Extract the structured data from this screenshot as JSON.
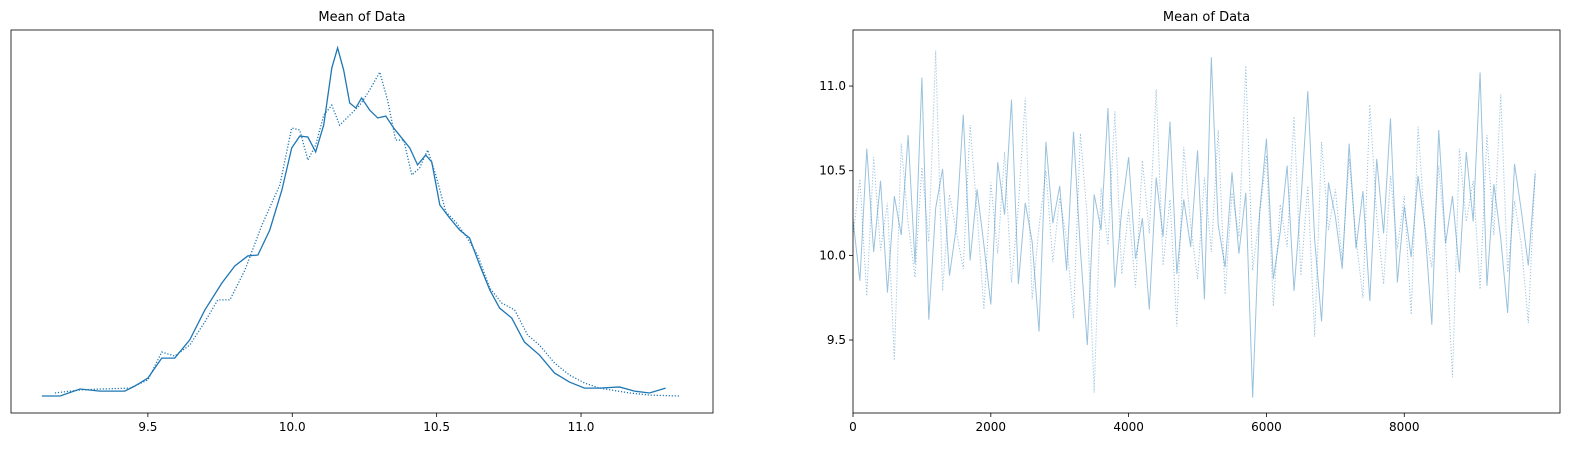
{
  "chart_data": [
    {
      "type": "line",
      "title": "Mean of Data",
      "xlim": [
        9.026,
        11.457
      ],
      "ylim": [
        -0.073,
        1.573
      ],
      "xticks": [
        9.5,
        {
          "value": 10,
          "label": "10.0"
        },
        10.5,
        {
          "value": 11,
          "label": "11.0"
        }
      ],
      "series": [
        {
          "color": "#1f77b4",
          "linestyle": "solid",
          "x": [
            9.133,
            9.196,
            9.265,
            9.334,
            9.42,
            9.455,
            9.5,
            9.548,
            9.593,
            9.645,
            9.697,
            9.756,
            9.801,
            9.846,
            9.881,
            9.922,
            9.964,
            9.998,
            10.026,
            10.054,
            10.081,
            10.109,
            10.137,
            10.157,
            10.178,
            10.199,
            10.22,
            10.24,
            10.268,
            10.296,
            10.324,
            10.351,
            10.379,
            10.407,
            10.434,
            10.462,
            10.483,
            10.511,
            10.545,
            10.58,
            10.614,
            10.649,
            10.684,
            10.718,
            10.76,
            10.804,
            10.856,
            10.908,
            10.96,
            11.012,
            11.064,
            11.133,
            11.185,
            11.237,
            11.293
          ],
          "values": [
            0,
            0,
            0.03,
            0.021,
            0.021,
            0.043,
            0.077,
            0.163,
            0.163,
            0.241,
            0.369,
            0.485,
            0.559,
            0.602,
            0.606,
            0.713,
            0.885,
            1.066,
            1.117,
            1.113,
            1.049,
            1.165,
            1.41,
            1.496,
            1.401,
            1.259,
            1.238,
            1.281,
            1.229,
            1.195,
            1.203,
            1.152,
            1.109,
            1.066,
            0.993,
            1.036,
            1.006,
            0.821,
            0.765,
            0.713,
            0.679,
            0.563,
            0.456,
            0.378,
            0.335,
            0.232,
            0.176,
            0.099,
            0.06,
            0.034,
            0.034,
            0.039,
            0.021,
            0.013,
            0.034
          ]
        },
        {
          "color": "#1f77b4",
          "linestyle": "dotted",
          "x": [
            9.178,
            9.265,
            9.334,
            9.438,
            9.5,
            9.548,
            9.593,
            9.645,
            9.697,
            9.742,
            9.784,
            9.836,
            9.895,
            9.957,
            9.998,
            10.026,
            10.054,
            10.081,
            10.109,
            10.137,
            10.164,
            10.199,
            10.234,
            10.268,
            10.303,
            10.33,
            10.358,
            10.386,
            10.414,
            10.441,
            10.469,
            10.497,
            10.532,
            10.566,
            10.601,
            10.642,
            10.684,
            10.725,
            10.77,
            10.815,
            10.856,
            10.908,
            10.96,
            11.012,
            11.064,
            11.168,
            11.237,
            11.341
          ],
          "values": [
            0.013,
            0.026,
            0.03,
            0.034,
            0.069,
            0.189,
            0.172,
            0.219,
            0.318,
            0.413,
            0.413,
            0.541,
            0.735,
            0.907,
            1.152,
            1.143,
            1.014,
            1.078,
            1.207,
            1.25,
            1.164,
            1.207,
            1.25,
            1.315,
            1.392,
            1.272,
            1.1,
            1.1,
            0.95,
            0.98,
            1.057,
            0.95,
            0.791,
            0.748,
            0.688,
            0.606,
            0.464,
            0.4,
            0.37,
            0.262,
            0.219,
            0.142,
            0.09,
            0.056,
            0.034,
            0.013,
            0.004,
            0
          ]
        }
      ]
    },
    {
      "type": "line",
      "title": "Mean of Data",
      "xlim": [
        0,
        10260
      ],
      "ylim": [
        9.069,
        11.331
      ],
      "xticks": [
        0,
        2000,
        4000,
        6000,
        8000
      ],
      "yticks": [
        9.5,
        {
          "value": 10,
          "label": "10.0"
        },
        10.5,
        {
          "value": 11,
          "label": "11.0"
        }
      ],
      "x": [
        0,
        100,
        200,
        300,
        400,
        500,
        600,
        700,
        800,
        900,
        1000,
        1100,
        1200,
        1300,
        1400,
        1500,
        1600,
        1700,
        1800,
        1900,
        2000,
        2100,
        2200,
        2300,
        2400,
        2500,
        2600,
        2700,
        2800,
        2900,
        3000,
        3100,
        3200,
        3300,
        3400,
        3500,
        3600,
        3700,
        3800,
        3900,
        4000,
        4100,
        4200,
        4300,
        4400,
        4500,
        4600,
        4700,
        4800,
        4900,
        5000,
        5100,
        5200,
        5300,
        5400,
        5500,
        5600,
        5700,
        5800,
        5900,
        6000,
        6100,
        6200,
        6300,
        6400,
        6500,
        6600,
        6700,
        6800,
        6900,
        7000,
        7100,
        7200,
        7300,
        7400,
        7500,
        7600,
        7700,
        7800,
        7900,
        8000,
        8100,
        8200,
        8300,
        8400,
        8500,
        8600,
        8700,
        8800,
        8900,
        9000,
        9100,
        9200,
        9300,
        9400,
        9500,
        9600,
        9700,
        9800,
        9900
      ],
      "alpha": 0.45,
      "series": [
        {
          "color": "#1f77b4",
          "linestyle": "solid",
          "values": [
            10.21,
            9.85,
            10.63,
            10.02,
            10.44,
            9.78,
            10.35,
            10.12,
            10.71,
            9.95,
            11.05,
            9.62,
            10.28,
            10.51,
            9.88,
            10.17,
            10.83,
            9.97,
            10.39,
            10.06,
            9.71,
            10.55,
            10.24,
            10.92,
            9.83,
            10.31,
            10.08,
            9.55,
            10.67,
            10.19,
            10.41,
            9.91,
            10.73,
            10.03,
            9.47,
            10.36,
            10.15,
            10.87,
            9.81,
            10.27,
            10.58,
            9.98,
            10.22,
            9.68,
            10.46,
            10.11,
            10.79,
            9.89,
            10.33,
            10.05,
            10.62,
            9.74,
            11.17,
            10.18,
            9.93,
            10.49,
            10.01,
            10.37,
            9.16,
            10.25,
            10.69,
            9.86,
            10.14,
            10.53,
            9.79,
            10.32,
            10.97,
            10.09,
            9.61,
            10.43,
            10.23,
            9.92,
            10.66,
            10.04,
            10.38,
            9.73,
            10.57,
            10.13,
            10.81,
            9.84,
            10.29,
            9.99,
            10.47,
            10.16,
            9.59,
            10.74,
            10.07,
            10.35,
            9.9,
            10.61,
            10.2,
            11.08,
            9.82,
            10.42,
            10.1,
            9.66,
            10.54,
            10.26,
            9.94,
            10.48
          ]
        },
        {
          "color": "#1f77b4",
          "linestyle": "dotted",
          "values": [
            10.12,
            10.45,
            9.76,
            10.58,
            10.03,
            10.31,
            9.38,
            10.66,
            10.19,
            9.87,
            10.52,
            10.08,
            11.21,
            9.79,
            10.36,
            10.14,
            9.92,
            10.77,
            10.25,
            9.68,
            10.43,
            10.01,
            10.61,
            9.84,
            10.29,
            10.93,
            9.74,
            10.17,
            10.5,
            9.96,
            10.34,
            10.09,
            9.63,
            10.72,
            10.22,
            9.19,
            10.4,
            10.06,
            10.85,
            9.89,
            10.27,
            9.81,
            10.56,
            10.13,
            10.98,
            9.94,
            10.33,
            9.58,
            10.64,
            10.18,
            9.86,
            10.46,
            10.02,
            10.74,
            9.77,
            10.37,
            10.11,
            11.12,
            9.91,
            10.24,
            10.59,
            9.7,
            10.3,
            10.05,
            10.82,
            9.88,
            10.41,
            9.52,
            10.67,
            10.15,
            10.39,
            9.97,
            10.57,
            10.1,
            9.75,
            10.89,
            10.23,
            9.83,
            10.47,
            10.04,
            10.35,
            9.65,
            10.76,
            10.16,
            9.93,
            10.53,
            10.07,
            9.28,
            10.63,
            10.2,
            10.44,
            9.8,
            10.71,
            10.12,
            10.95,
            9.9,
            10.32,
            10.06,
            9.6,
            10.5
          ]
        }
      ]
    }
  ]
}
